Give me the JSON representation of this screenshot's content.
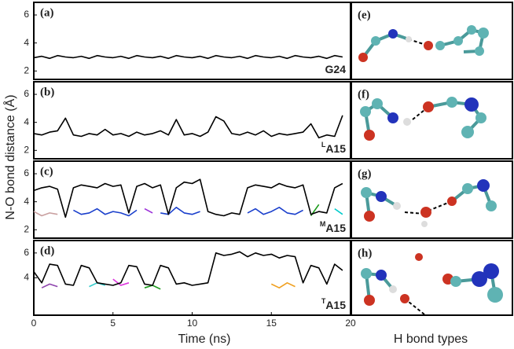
{
  "figure": {
    "ylabel": "N-O bond distance (Å)",
    "xlabel": "Time (ns)",
    "right_xlabel": "H bond types"
  },
  "structure_panels": [
    {
      "label": "(e)"
    },
    {
      "label": "(f)"
    },
    {
      "label": "(g)"
    },
    {
      "label": "(h)"
    }
  ],
  "chart_data": [
    {
      "type": "line",
      "panel_label": "(a)",
      "label_main": "G24",
      "x": [
        0,
        0.5,
        1,
        1.5,
        2,
        2.5,
        3,
        3.5,
        4,
        4.5,
        5,
        5.5,
        6,
        6.5,
        7,
        7.5,
        8,
        8.5,
        9,
        9.5,
        10,
        10.5,
        11,
        11.5,
        12,
        12.5,
        13,
        13.5,
        14,
        14.5,
        15,
        15.5,
        16,
        16.5,
        17,
        17.5,
        18,
        18.5,
        19,
        19.5
      ],
      "xlim": [
        0,
        20
      ],
      "ylim": [
        1.4,
        6.9
      ],
      "yticks": [
        2,
        4,
        6
      ],
      "series": [
        {
          "color": "#000000",
          "values": [
            2.95,
            3.05,
            2.9,
            3.1,
            3.0,
            2.95,
            3.05,
            2.9,
            3.1,
            3.0,
            2.95,
            3.05,
            2.9,
            3.1,
            3.0,
            2.95,
            3.05,
            2.9,
            3.1,
            3.0,
            2.95,
            3.05,
            2.9,
            3.1,
            3.0,
            2.95,
            3.05,
            2.9,
            3.1,
            3.0,
            2.95,
            3.05,
            2.9,
            3.1,
            3.0,
            2.95,
            3.05,
            2.9,
            3.1,
            3.0
          ]
        }
      ]
    },
    {
      "type": "line",
      "panel_label": "(b)",
      "label_sup": "L",
      "label_main": "A15",
      "x": [
        0,
        0.5,
        1,
        1.5,
        2,
        2.5,
        3,
        3.5,
        4,
        4.5,
        5,
        5.5,
        6,
        6.5,
        7,
        7.5,
        8,
        8.5,
        9,
        9.5,
        10,
        10.5,
        11,
        11.5,
        12,
        12.5,
        13,
        13.5,
        14,
        14.5,
        15,
        15.5,
        16,
        16.5,
        17,
        17.5,
        18,
        18.5,
        19,
        19.5
      ],
      "xlim": [
        0,
        20
      ],
      "ylim": [
        1.4,
        6.9
      ],
      "yticks": [
        2,
        4,
        6
      ],
      "series": [
        {
          "color": "#000000",
          "values": [
            3.2,
            3.1,
            3.3,
            3.4,
            4.3,
            3.1,
            3.0,
            3.2,
            3.1,
            3.5,
            3.1,
            3.2,
            3.0,
            3.3,
            3.1,
            3.2,
            3.4,
            3.1,
            4.2,
            3.1,
            3.2,
            3.0,
            3.3,
            4.4,
            4.1,
            3.2,
            3.1,
            3.3,
            3.1,
            3.4,
            3.0,
            3.2,
            3.1,
            3.2,
            3.3,
            3.9,
            2.9,
            3.1,
            3.0,
            4.5
          ]
        }
      ]
    },
    {
      "type": "line",
      "panel_label": "(c)",
      "label_sup": "M",
      "label_main": "A15",
      "x": [
        0,
        0.5,
        1,
        1.5,
        2,
        2.5,
        3,
        3.5,
        4,
        4.5,
        5,
        5.5,
        6,
        6.5,
        7,
        7.5,
        8,
        8.5,
        9,
        9.5,
        10,
        10.5,
        11,
        11.5,
        12,
        12.5,
        13,
        13.5,
        14,
        14.5,
        15,
        15.5,
        16,
        16.5,
        17,
        17.5,
        18,
        18.5,
        19,
        19.5
      ],
      "xlim": [
        0,
        20
      ],
      "ylim": [
        1.4,
        6.9
      ],
      "yticks": [
        2,
        4,
        6
      ],
      "series": [
        {
          "color": "#c9a0a0",
          "values": [
            3.3,
            3.0,
            3.2,
            3.1,
            null,
            null,
            null,
            null,
            null,
            null,
            null,
            null,
            null,
            null,
            null,
            null,
            null,
            null,
            null,
            null,
            null,
            null,
            null,
            null,
            null,
            null,
            null,
            null,
            null,
            null,
            null,
            null,
            null,
            null,
            null,
            null,
            null,
            null,
            null,
            null
          ]
        },
        {
          "color": "#1a3fcc",
          "values": [
            null,
            null,
            null,
            null,
            null,
            3.4,
            3.1,
            3.2,
            3.5,
            3.1,
            3.3,
            3.2,
            3.0,
            3.4,
            null,
            null,
            3.2,
            3.1,
            3.6,
            3.2,
            3.1,
            3.3,
            null,
            null,
            null,
            null,
            null,
            3.2,
            3.5,
            3.1,
            3.3,
            3.6,
            3.2,
            3.1,
            3.4,
            null,
            null,
            null,
            null,
            null
          ]
        },
        {
          "color": "#9b30d9",
          "values": [
            null,
            null,
            null,
            null,
            null,
            null,
            null,
            null,
            null,
            null,
            null,
            null,
            null,
            null,
            3.5,
            3.2,
            null,
            null,
            null,
            null,
            null,
            null,
            null,
            null,
            null,
            null,
            null,
            null,
            null,
            null,
            null,
            null,
            null,
            null,
            null,
            null,
            null,
            null,
            null,
            null
          ]
        },
        {
          "color": "#1a9a1a",
          "values": [
            null,
            null,
            null,
            null,
            null,
            null,
            null,
            null,
            null,
            null,
            null,
            null,
            null,
            null,
            null,
            null,
            null,
            null,
            null,
            null,
            null,
            null,
            null,
            null,
            null,
            null,
            null,
            null,
            null,
            null,
            null,
            null,
            null,
            null,
            null,
            3.0,
            3.8,
            null,
            null,
            null
          ]
        },
        {
          "color": "#00cccc",
          "values": [
            null,
            null,
            null,
            null,
            null,
            null,
            null,
            null,
            null,
            null,
            null,
            null,
            null,
            null,
            null,
            null,
            null,
            null,
            null,
            null,
            null,
            null,
            null,
            null,
            null,
            null,
            null,
            null,
            null,
            null,
            null,
            null,
            null,
            null,
            null,
            null,
            null,
            null,
            3.5,
            3.1
          ]
        },
        {
          "color": "#000000",
          "values": [
            4.8,
            5.0,
            5.1,
            4.9,
            2.9,
            5.0,
            5.2,
            5.1,
            5.0,
            5.3,
            5.1,
            5.2,
            3.2,
            5.1,
            5.3,
            5.0,
            5.2,
            3.1,
            5.0,
            5.4,
            5.3,
            5.6,
            3.3,
            3.1,
            3.0,
            3.2,
            3.1,
            5.0,
            5.2,
            5.1,
            5.0,
            5.3,
            5.1,
            5.0,
            5.2,
            3.1,
            3.3,
            3.2,
            5.0,
            5.3
          ]
        }
      ]
    },
    {
      "type": "line",
      "panel_label": "(d)",
      "label_sup": "T",
      "label_main": "A15",
      "x": [
        0,
        0.5,
        1,
        1.5,
        2,
        2.5,
        3,
        3.5,
        4,
        4.5,
        5,
        5.5,
        6,
        6.5,
        7,
        7.5,
        8,
        8.5,
        9,
        9.5,
        10,
        10.5,
        11,
        11.5,
        12,
        12.5,
        13,
        13.5,
        14,
        14.5,
        15,
        15.5,
        16,
        16.5,
        17,
        17.5,
        18,
        18.5,
        19,
        19.5
      ],
      "xlim": [
        0,
        20
      ],
      "xticks": [
        0,
        5,
        10,
        15,
        20
      ],
      "ylim": [
        1.0,
        7.0
      ],
      "yticks": [
        4,
        6
      ],
      "series": [
        {
          "color": "#8e44ad",
          "values": [
            null,
            3.2,
            3.5,
            3.3,
            null,
            null,
            null,
            null,
            null,
            null,
            null,
            null,
            null,
            null,
            null,
            null,
            null,
            null,
            null,
            null,
            null,
            null,
            null,
            null,
            null,
            null,
            null,
            null,
            null,
            null,
            null,
            null,
            null,
            null,
            null,
            null,
            null,
            null,
            null,
            null
          ]
        },
        {
          "color": "#33cccc",
          "values": [
            null,
            null,
            null,
            null,
            null,
            null,
            null,
            3.3,
            3.6,
            3.4,
            null,
            null,
            null,
            null,
            null,
            null,
            null,
            null,
            null,
            null,
            null,
            null,
            null,
            null,
            null,
            null,
            null,
            null,
            null,
            null,
            null,
            null,
            null,
            null,
            null,
            null,
            null,
            null,
            null,
            null
          ]
        },
        {
          "color": "#dd33dd",
          "values": [
            null,
            null,
            null,
            null,
            null,
            null,
            null,
            null,
            null,
            null,
            3.9,
            3.4,
            3.6,
            null,
            null,
            null,
            null,
            null,
            null,
            null,
            null,
            null,
            null,
            null,
            null,
            null,
            null,
            null,
            null,
            null,
            null,
            null,
            null,
            null,
            null,
            null,
            null,
            null,
            null,
            null
          ]
        },
        {
          "color": "#1a9a1a",
          "values": [
            null,
            null,
            null,
            null,
            null,
            null,
            null,
            null,
            null,
            null,
            null,
            null,
            null,
            null,
            3.2,
            3.4,
            3.1,
            null,
            null,
            null,
            null,
            null,
            null,
            null,
            null,
            null,
            null,
            null,
            null,
            null,
            null,
            null,
            null,
            null,
            null,
            null,
            null,
            null,
            null,
            null
          ]
        },
        {
          "color": "#f0a020",
          "values": [
            null,
            null,
            null,
            null,
            null,
            null,
            null,
            null,
            null,
            null,
            null,
            null,
            null,
            null,
            null,
            null,
            null,
            null,
            null,
            null,
            null,
            null,
            null,
            null,
            null,
            null,
            null,
            null,
            null,
            null,
            3.5,
            3.2,
            3.6,
            3.3,
            null,
            null,
            null,
            null,
            null,
            null
          ]
        },
        {
          "color": "#000000",
          "values": [
            4.5,
            3.6,
            5.1,
            5.0,
            3.5,
            3.4,
            5.0,
            4.8,
            3.6,
            3.5,
            3.4,
            3.6,
            5.0,
            4.9,
            3.5,
            3.4,
            5.0,
            4.8,
            3.5,
            3.6,
            3.4,
            3.5,
            3.6,
            6.0,
            5.8,
            5.9,
            6.1,
            5.7,
            6.0,
            5.8,
            5.9,
            5.6,
            5.8,
            5.7,
            3.6,
            5.0,
            4.8,
            3.5,
            5.1,
            4.6
          ]
        }
      ]
    }
  ]
}
